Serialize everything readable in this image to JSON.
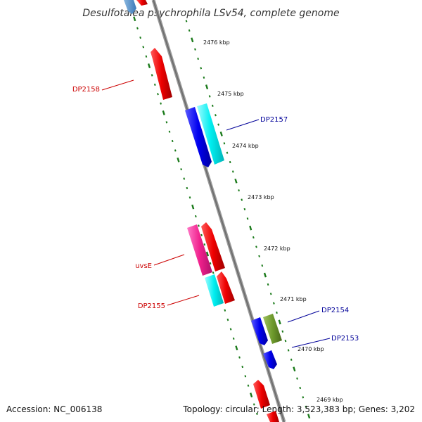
{
  "title": "Desulfotalea psychrophila LSv54, complete genome",
  "footer": {
    "accession": "Accession: NC_006138",
    "summary": "Topology: circular; Length: 3,523,383 bp; Genes: 3,202"
  },
  "colors": {
    "backbone": "#8a8a8a",
    "ruler": "#1a7a1a",
    "forward_label": "#cc0000",
    "reverse_label": "#000099"
  },
  "kbp_labels": [
    "2476 kbp",
    "2475 kbp",
    "2474 kbp",
    "2473 kbp",
    "2472 kbp",
    "2471 kbp",
    "2470 kbp",
    "2469 kbp"
  ],
  "gene_labels": {
    "dp2158": "DP2158",
    "dp2157": "DP2157",
    "uvse": "uvsE",
    "dp2155": "DP2155",
    "dp2154": "DP2154",
    "dp2153": "DP2153"
  }
}
